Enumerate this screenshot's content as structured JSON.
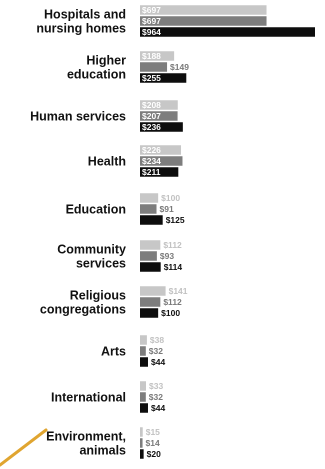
{
  "chart_data": {
    "type": "bar",
    "orientation": "horizontal",
    "title": "",
    "xlabel": "",
    "ylabel": "",
    "legend": "none",
    "grid": false,
    "categories": [
      "Hospitals and nursing homes",
      "Higher education",
      "Human services",
      "Health",
      "Education",
      "Community services",
      "Religious congregations",
      "Arts",
      "International",
      "Environment, animals"
    ],
    "category_lines": [
      [
        "Hospitals and",
        "nursing homes"
      ],
      [
        "Higher",
        "education"
      ],
      [
        "Human services"
      ],
      [
        "Health"
      ],
      [
        "Education"
      ],
      [
        "Community",
        "services"
      ],
      [
        "Religious",
        "congregations"
      ],
      [
        "Arts"
      ],
      [
        "International"
      ],
      [
        "Environment,",
        "animals"
      ]
    ],
    "series": [
      {
        "values": [
          697,
          188,
          208,
          226,
          100,
          112,
          141,
          38,
          33,
          15
        ],
        "labels": [
          "$697",
          "$188",
          "$208",
          "$226",
          "$100",
          "$112",
          "$141",
          "$38",
          "$33",
          "$15"
        ],
        "color": "#c7c7c7"
      },
      {
        "values": [
          697,
          149,
          207,
          234,
          91,
          93,
          112,
          32,
          32,
          14
        ],
        "labels": [
          "$697",
          "$149",
          "$207",
          "$234",
          "$91",
          "$93",
          "$112",
          "$32",
          "$32",
          "$14"
        ],
        "color": "#7d7d7d"
      },
      {
        "values": [
          964,
          255,
          236,
          211,
          125,
          114,
          100,
          44,
          44,
          20
        ],
        "labels": [
          "$964",
          "$255",
          "$236",
          "$211",
          "$125",
          "$114",
          "$100",
          "$44",
          "$44",
          "$20"
        ],
        "color": "#0d0d0d"
      }
    ],
    "label_colors": [
      "#c2c2c2",
      "#7a7a7a",
      "#111111"
    ],
    "accent_stroke_color": "#e0a530"
  }
}
